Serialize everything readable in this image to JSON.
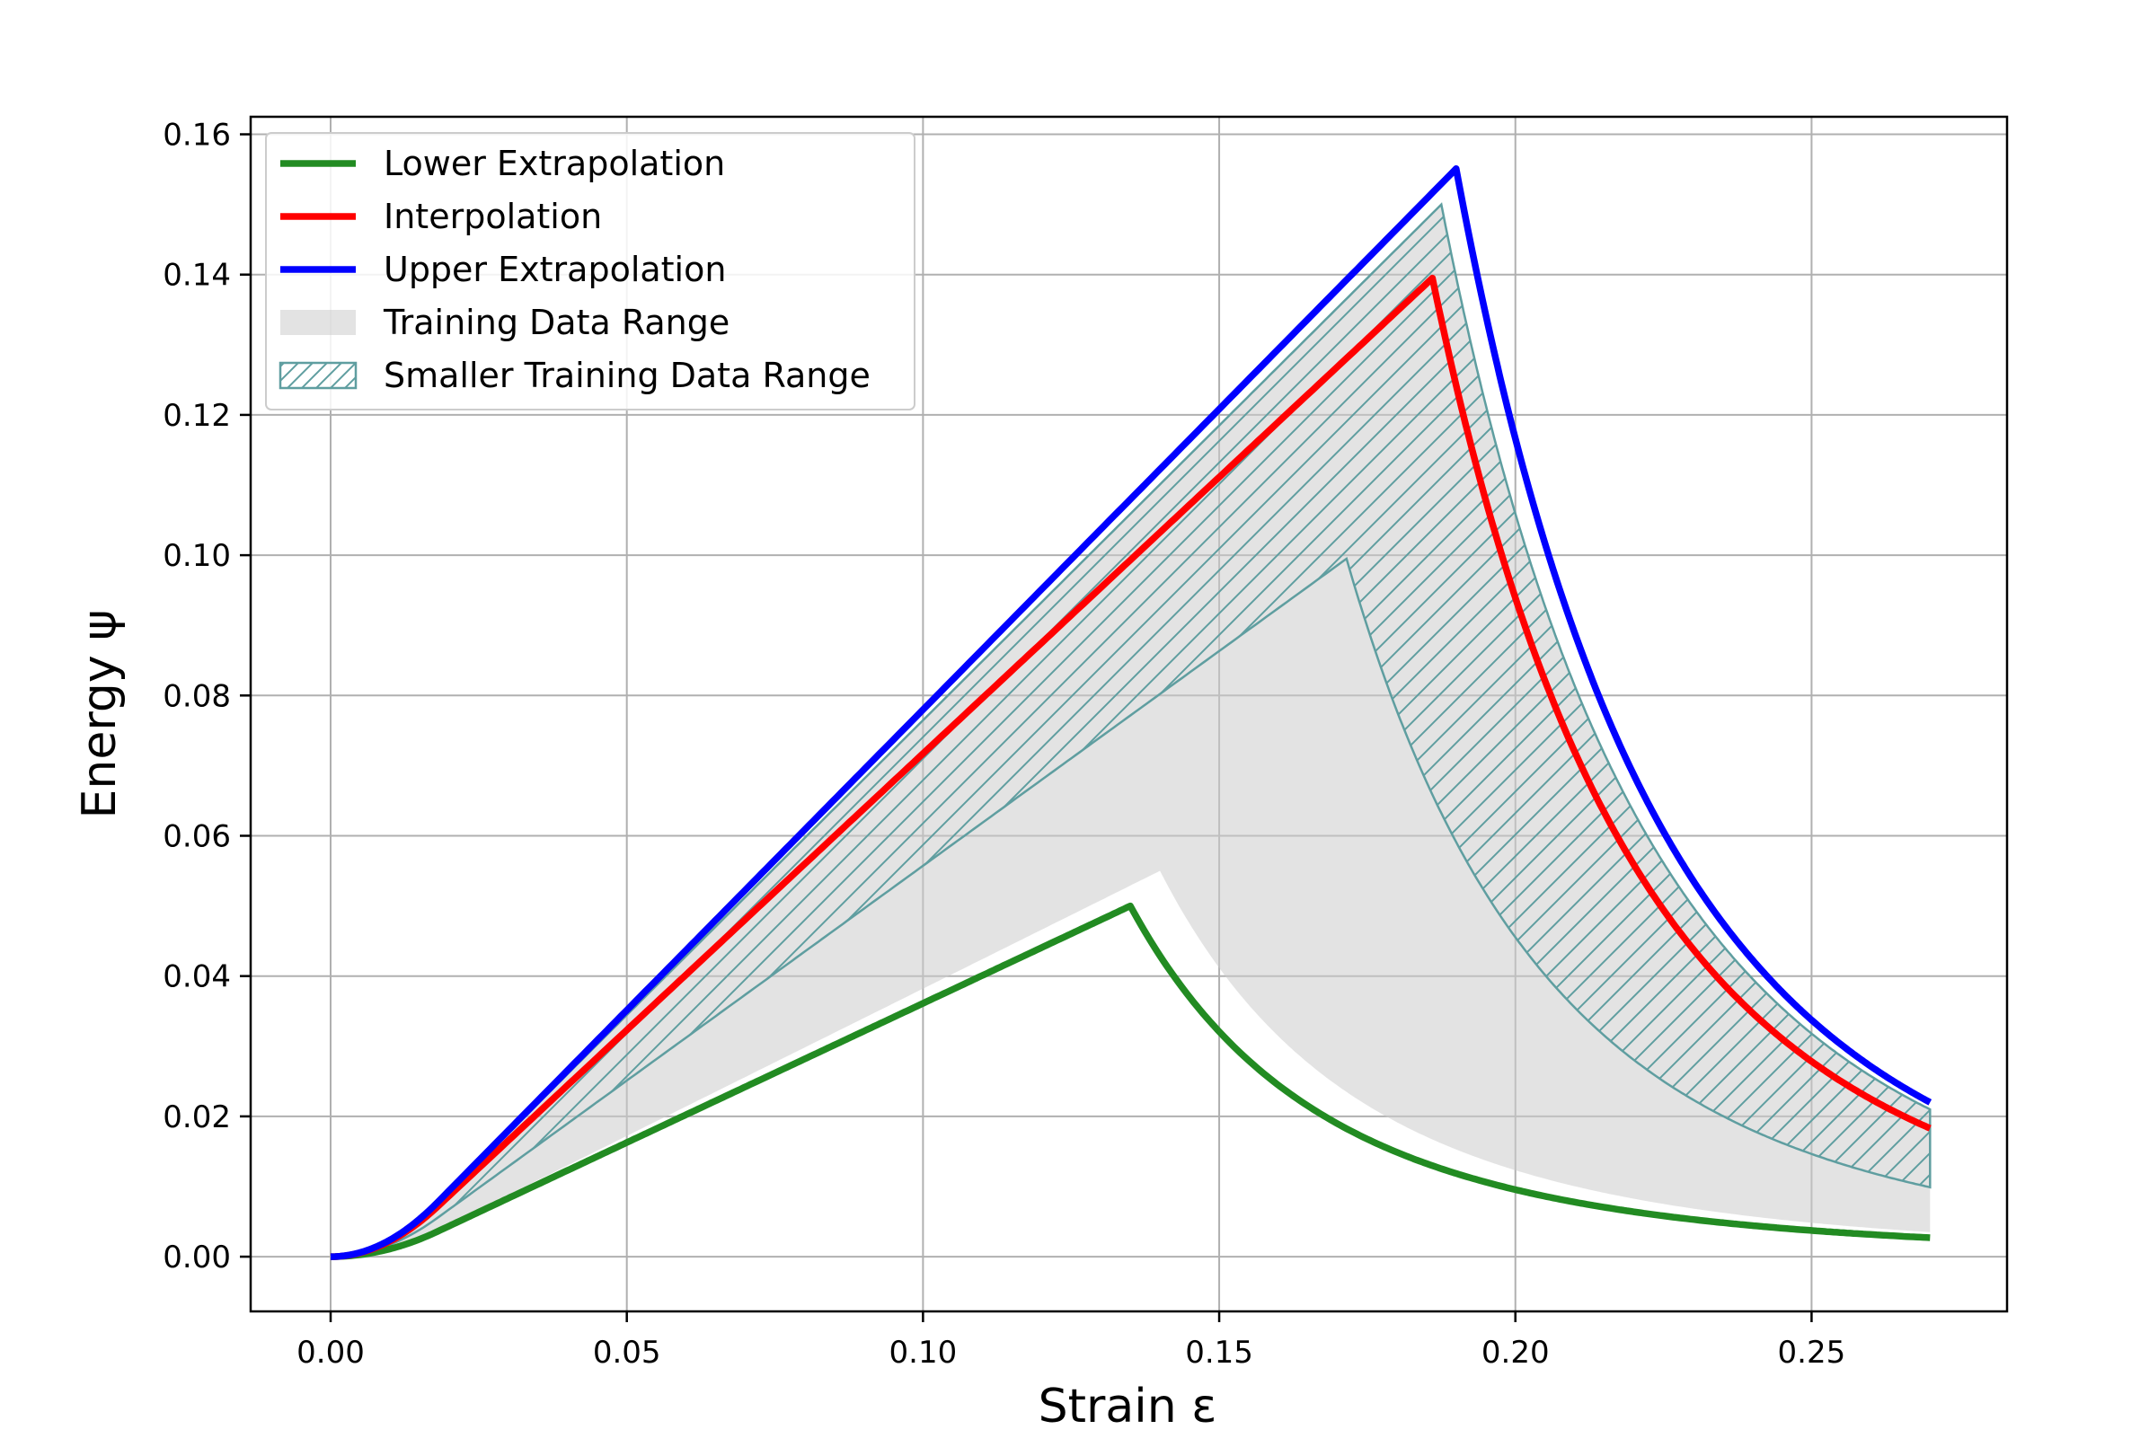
{
  "chart_data": {
    "type": "line",
    "title": "",
    "xlabel": "Strain ε",
    "ylabel": "Energy ψ",
    "xlim": [
      -0.0135,
      0.283
    ],
    "ylim": [
      -0.0078,
      0.1625
    ],
    "x_ticks": [
      0.0,
      0.05,
      0.1,
      0.15,
      0.2,
      0.25
    ],
    "x_tick_labels": [
      "0.00",
      "0.05",
      "0.10",
      "0.15",
      "0.20",
      "0.25"
    ],
    "y_ticks": [
      0.0,
      0.02,
      0.04,
      0.06,
      0.08,
      0.1,
      0.12,
      0.14,
      0.16
    ],
    "y_tick_labels": [
      "0.00",
      "0.02",
      "0.04",
      "0.06",
      "0.08",
      "0.10",
      "0.12",
      "0.14",
      "0.16"
    ],
    "grid": true,
    "legend_position": "upper-left",
    "series": [
      {
        "name": "Lower Extrapolation",
        "color": "#228b22",
        "peak_x": 0.135,
        "peak_y": 0.05,
        "decay_end_y": 0.0027,
        "x_max": 0.27,
        "onset": 0.018
      },
      {
        "name": "Interpolation",
        "color": "#ff0000",
        "peak_x": 0.186,
        "peak_y": 0.1395,
        "decay_end_y": 0.0183,
        "x_max": 0.27,
        "onset": 0.018
      },
      {
        "name": "Upper Extrapolation",
        "color": "#0000ff",
        "peak_x": 0.19,
        "peak_y": 0.1551,
        "decay_end_y": 0.022,
        "x_max": 0.27,
        "onset": 0.018
      }
    ],
    "bands": [
      {
        "name": "Training Data Range",
        "style": "gray-fill",
        "color": "#cccccc",
        "lower": {
          "peak_x": 0.14,
          "peak_y": 0.055,
          "decay_end_y": 0.0035
        },
        "upper": {
          "peak_x": 0.1875,
          "peak_y": 0.15,
          "decay_end_y": 0.021
        }
      },
      {
        "name": "Smaller Training Data Range",
        "style": "hatch",
        "color": "#5f9ea0",
        "lower": {
          "peak_x": 0.1715,
          "peak_y": 0.0995,
          "decay_end_y": 0.0099
        },
        "upper": {
          "peak_x": 0.1875,
          "peak_y": 0.15,
          "decay_end_y": 0.021
        }
      }
    ]
  }
}
